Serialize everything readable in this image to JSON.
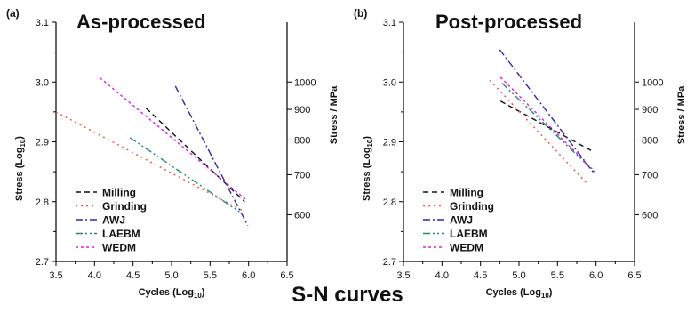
{
  "figure": {
    "caption": "S-N curves",
    "colors": {
      "Milling": "#111111",
      "Grinding": "#ee5544",
      "AWJ": "#2a2aa8",
      "LAEBM": "#1f8a7a",
      "WEDM": "#dd22dd"
    }
  },
  "chart_data": [
    {
      "type": "line",
      "panel_label": "(a)",
      "title": "As-processed",
      "xlabel": "Cycles (Log10)",
      "ylabel": "Stress (Log10)",
      "y2label": "Stress / MPa",
      "xlim": [
        3.5,
        6.5
      ],
      "ylim": [
        2.7,
        3.1
      ],
      "xticks": [
        "3.5",
        "4.0",
        "4.5",
        "5.0",
        "5.5",
        "6.0",
        "6.5"
      ],
      "yticks": [
        "2.7",
        "2.8",
        "2.9",
        "3.0",
        "3.1"
      ],
      "y2ticks": [
        600,
        700,
        800,
        900,
        1000
      ],
      "legend_position": "bottom-left",
      "series": [
        {
          "name": "Milling",
          "dash": "6,4",
          "x": [
            4.67,
            5.95
          ],
          "y": [
            2.956,
            2.8
          ]
        },
        {
          "name": "Grinding",
          "dash": "2,4",
          "x": [
            3.5,
            5.95
          ],
          "y": [
            2.95,
            2.783
          ]
        },
        {
          "name": "AWJ",
          "dash": "8,3,2,3",
          "x": [
            5.05,
            5.99
          ],
          "y": [
            2.993,
            2.76
          ]
        },
        {
          "name": "LAEBM",
          "dash": "8,3,2,3,2,3",
          "x": [
            4.46,
            5.88
          ],
          "y": [
            2.907,
            2.783
          ]
        },
        {
          "name": "WEDM",
          "dash": "3,3",
          "x": [
            4.07,
            5.98
          ],
          "y": [
            3.007,
            2.802
          ]
        }
      ]
    },
    {
      "type": "line",
      "panel_label": "(b)",
      "title": "Post-processed",
      "xlabel": "Cycles (Log10)",
      "ylabel": "Stress (Log10)",
      "y2label": "Stress / MPa",
      "xlim": [
        3.5,
        6.5
      ],
      "ylim": [
        2.7,
        3.1
      ],
      "xticks": [
        "3.5",
        "4.0",
        "4.5",
        "5.0",
        "5.5",
        "6.0",
        "6.5"
      ],
      "yticks": [
        "2.7",
        "2.8",
        "2.9",
        "3.0",
        "3.1"
      ],
      "y2ticks": [
        600,
        700,
        800,
        900,
        1000
      ],
      "legend_position": "bottom-left",
      "series": [
        {
          "name": "Milling",
          "dash": "6,4",
          "x": [
            4.76,
            5.97
          ],
          "y": [
            2.968,
            2.883
          ]
        },
        {
          "name": "Grinding",
          "dash": "2,4",
          "x": [
            4.62,
            5.87
          ],
          "y": [
            3.003,
            2.832
          ]
        },
        {
          "name": "AWJ",
          "dash": "8,3,2,3",
          "x": [
            4.75,
            5.97
          ],
          "y": [
            3.054,
            2.848
          ]
        },
        {
          "name": "LAEBM",
          "dash": "8,3,2,3,2,3",
          "x": [
            4.78,
            5.98
          ],
          "y": [
            2.998,
            2.85
          ]
        },
        {
          "name": "WEDM",
          "dash": "3,3",
          "x": [
            4.76,
            5.95
          ],
          "y": [
            3.008,
            2.855
          ]
        }
      ]
    }
  ]
}
